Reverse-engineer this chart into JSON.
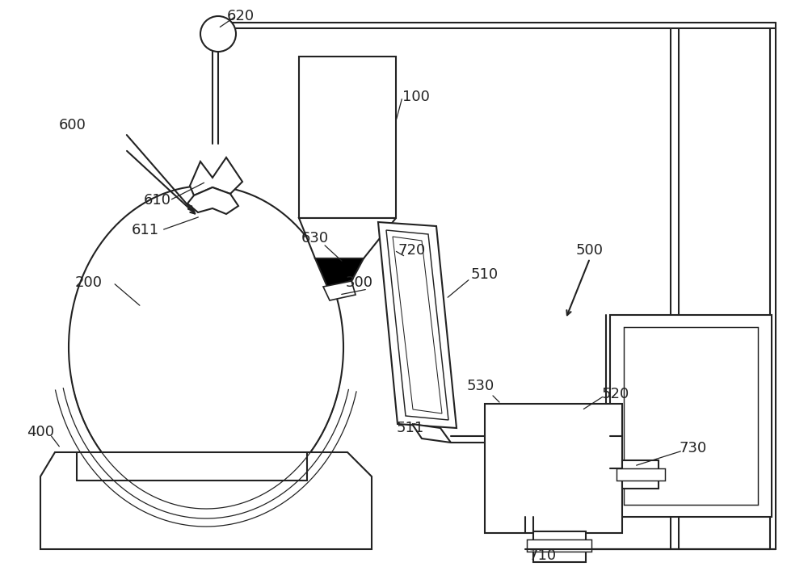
{
  "bg": "#ffffff",
  "lc": "#222222",
  "lw": 1.5,
  "fs": 13
}
